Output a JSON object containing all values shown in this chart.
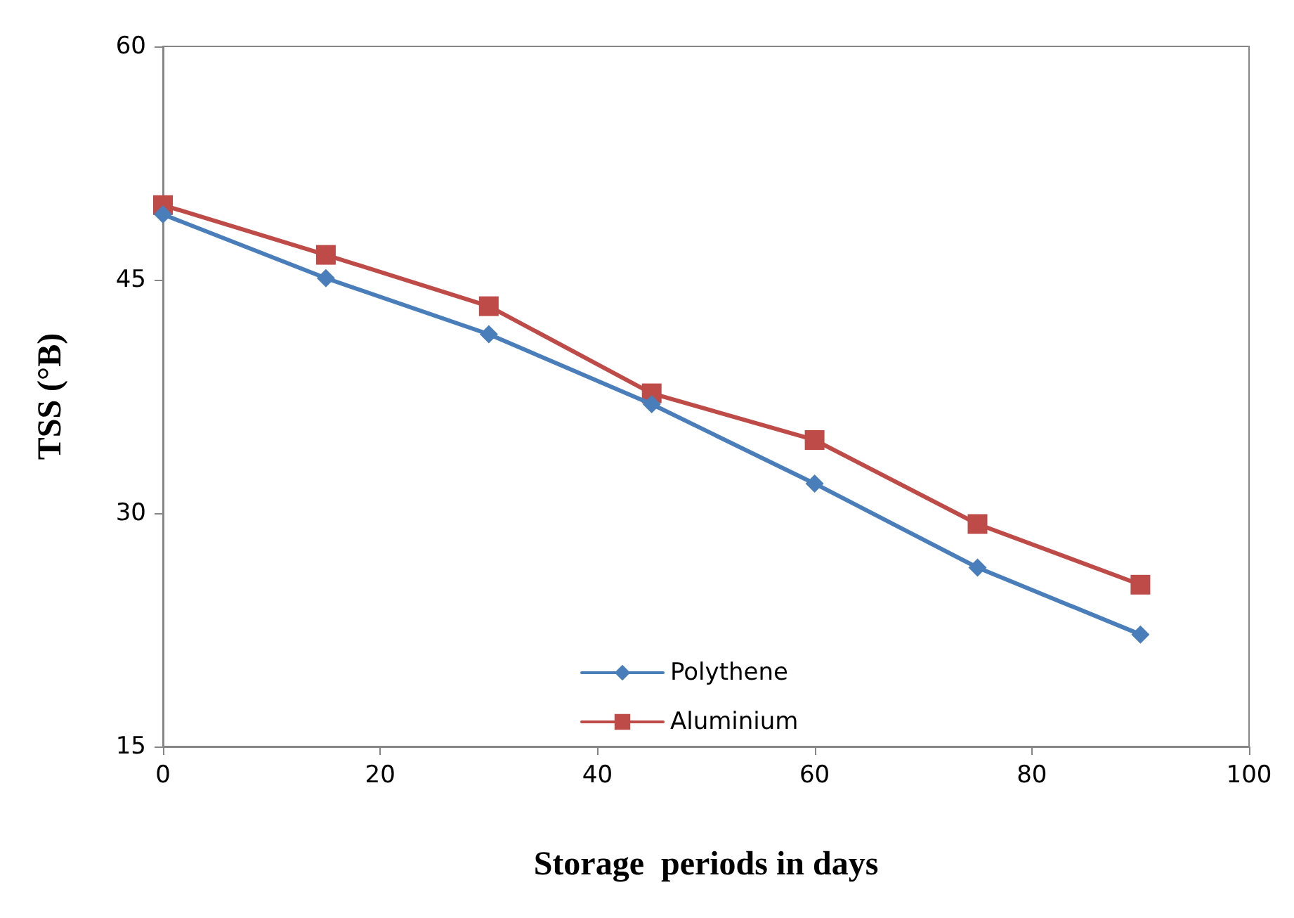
{
  "chart_data": {
    "type": "line",
    "xlabel": "Storage  periods in days",
    "ylabel": "TSS (°B)",
    "x": [
      0,
      15,
      30,
      45,
      60,
      75,
      90
    ],
    "series": [
      {
        "name": "Polythene",
        "color": "#4a7ebb",
        "marker": "diamond",
        "values": [
          49.2,
          45.1,
          41.5,
          37.0,
          31.9,
          26.5,
          22.2
        ]
      },
      {
        "name": "Aluminium",
        "color": "#be4b48",
        "marker": "square",
        "values": [
          49.8,
          46.6,
          43.3,
          37.7,
          34.7,
          29.3,
          25.4
        ]
      }
    ],
    "xlim": [
      0,
      100
    ],
    "xticks": [
      0,
      20,
      40,
      60,
      80,
      100
    ],
    "ylim": [
      15,
      60
    ],
    "yticks": [
      15,
      30,
      45,
      60
    ],
    "grid": false,
    "legend": "bottom",
    "line_style": "solid"
  }
}
